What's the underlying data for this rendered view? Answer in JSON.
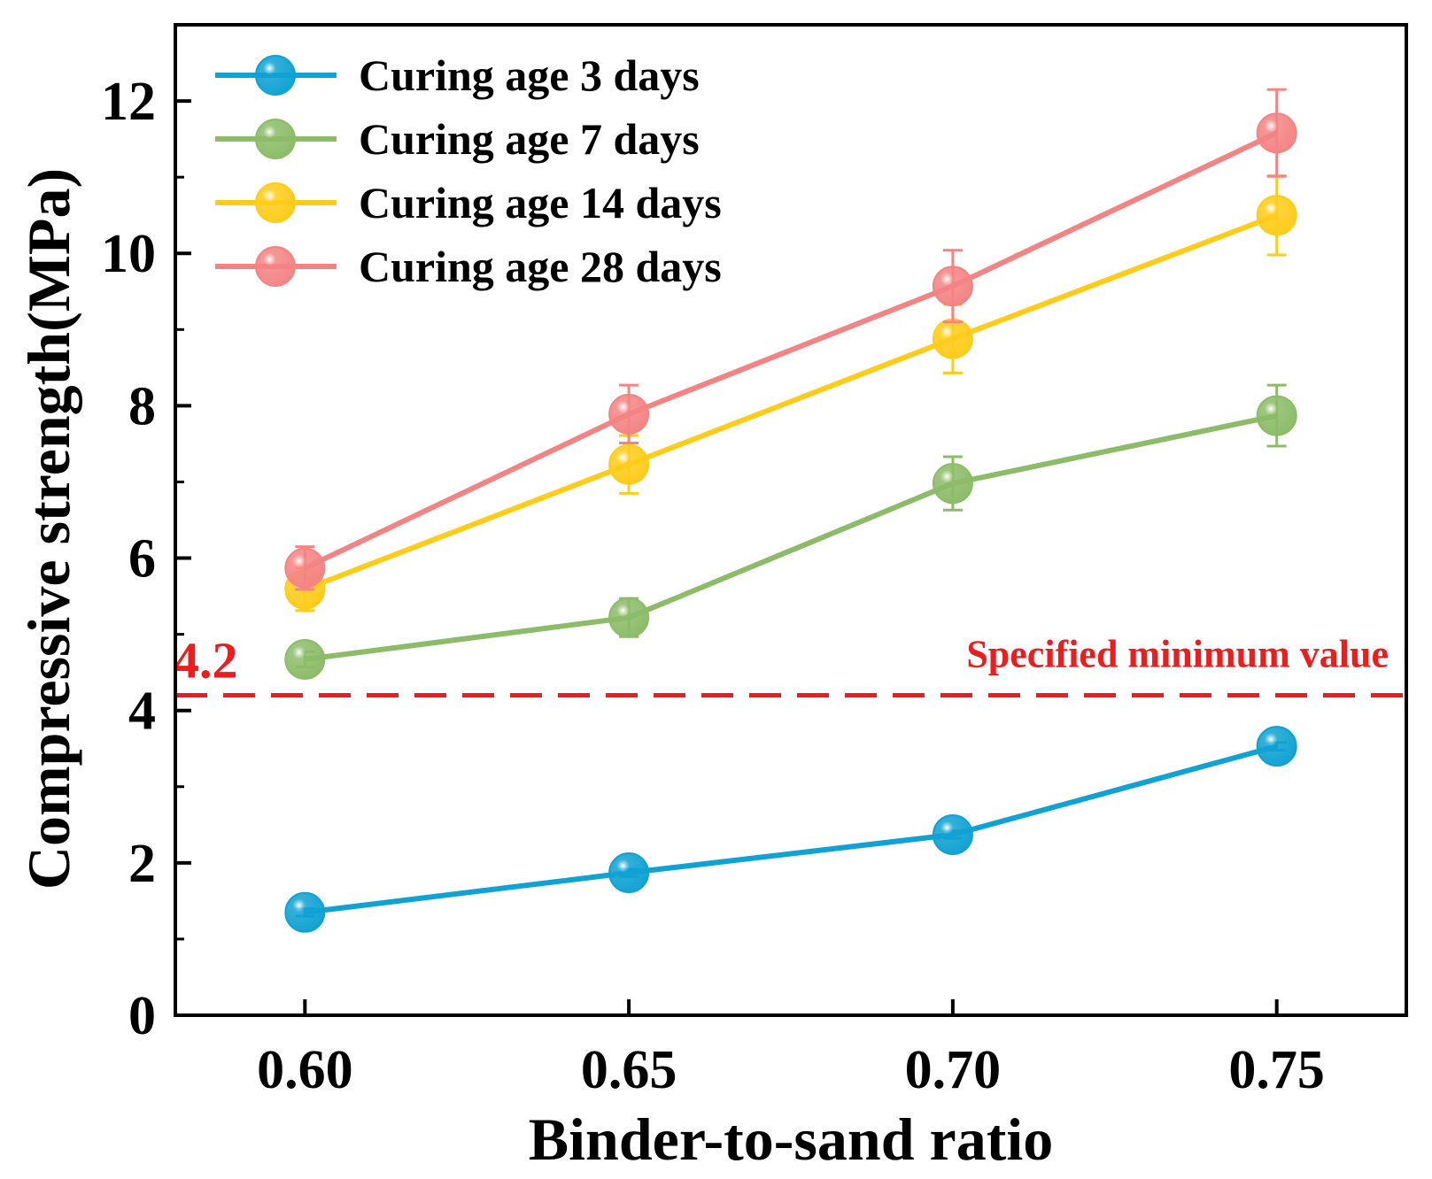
{
  "chart_data": {
    "type": "line",
    "xlabel": "Binder-to-sand ratio",
    "ylabel": "Compressive strength(MPa)",
    "x": [
      0.6,
      0.65,
      0.7,
      0.75
    ],
    "x_tick_labels": [
      "0.60",
      "0.65",
      "0.70",
      "0.75"
    ],
    "xlim": [
      0.58,
      0.77
    ],
    "ylim": [
      0,
      13
    ],
    "y_ticks": [
      0,
      2,
      4,
      6,
      8,
      10,
      12
    ],
    "y_tick_labels": [
      "0",
      "2",
      "4",
      "6",
      "8",
      "10",
      "12"
    ],
    "grid": false,
    "legend_position": "top-left",
    "series": [
      {
        "name": "Curing age 3 days",
        "color": "#0fa2d2",
        "values": [
          1.35,
          1.87,
          2.37,
          3.53
        ],
        "errors": [
          0.05,
          0.05,
          0.05,
          0.05
        ]
      },
      {
        "name": "Curing age 7 days",
        "color": "#8cbc68",
        "values": [
          4.67,
          5.22,
          6.98,
          7.87
        ],
        "errors": [
          0.1,
          0.25,
          0.35,
          0.4
        ]
      },
      {
        "name": "Curing age 14 days",
        "color": "#ffcc1a",
        "values": [
          5.59,
          7.23,
          8.88,
          10.5
        ],
        "errors": [
          0.28,
          0.38,
          0.45,
          0.52
        ]
      },
      {
        "name": "Curing age 28 days",
        "color": "#f48484",
        "values": [
          5.87,
          7.89,
          9.57,
          11.58
        ],
        "errors": [
          0.28,
          0.38,
          0.47,
          0.57
        ]
      }
    ],
    "reference_line": {
      "value": 4.2,
      "value_label": "4.2",
      "label": "Specified minimum value",
      "color": "#ee1c1c",
      "style": "dashed"
    }
  }
}
